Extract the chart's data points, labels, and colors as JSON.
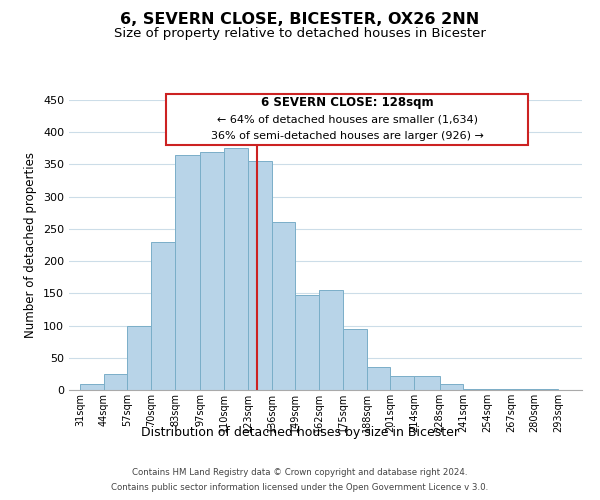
{
  "title": "6, SEVERN CLOSE, BICESTER, OX26 2NN",
  "subtitle": "Size of property relative to detached houses in Bicester",
  "xlabel": "Distribution of detached houses by size in Bicester",
  "ylabel": "Number of detached properties",
  "footer_line1": "Contains HM Land Registry data © Crown copyright and database right 2024.",
  "footer_line2": "Contains public sector information licensed under the Open Government Licence v 3.0.",
  "annotation_title": "6 SEVERN CLOSE: 128sqm",
  "annotation_line1": "← 64% of detached houses are smaller (1,634)",
  "annotation_line2": "36% of semi-detached houses are larger (926) →",
  "bar_left_edges": [
    31,
    44,
    57,
    70,
    83,
    97,
    110,
    123,
    136,
    149,
    162,
    175,
    188,
    201,
    214,
    228,
    241,
    254,
    267,
    280
  ],
  "bar_heights": [
    10,
    25,
    100,
    230,
    365,
    370,
    375,
    355,
    260,
    147,
    155,
    95,
    35,
    22,
    22,
    10,
    1,
    1,
    1,
    1
  ],
  "bar_widths": [
    13,
    13,
    13,
    13,
    14,
    13,
    13,
    13,
    13,
    13,
    13,
    13,
    13,
    13,
    14,
    13,
    13,
    13,
    13,
    13
  ],
  "tick_labels": [
    "31sqm",
    "44sqm",
    "57sqm",
    "70sqm",
    "83sqm",
    "97sqm",
    "110sqm",
    "123sqm",
    "136sqm",
    "149sqm",
    "162sqm",
    "175sqm",
    "188sqm",
    "201sqm",
    "214sqm",
    "228sqm",
    "241sqm",
    "254sqm",
    "267sqm",
    "280sqm",
    "293sqm"
  ],
  "tick_positions": [
    31,
    44,
    57,
    70,
    83,
    97,
    110,
    123,
    136,
    149,
    162,
    175,
    188,
    201,
    214,
    228,
    241,
    254,
    267,
    280,
    293
  ],
  "bar_color": "#b8d4e8",
  "bar_edge_color": "#7aaec8",
  "vline_x": 128,
  "vline_color": "#cc2222",
  "ylim": [
    0,
    450
  ],
  "xlim": [
    25,
    306
  ],
  "background_color": "#ffffff",
  "grid_color": "#ccdde8",
  "title_fontsize": 11.5,
  "subtitle_fontsize": 9.5,
  "annotation_box_edge_color": "#cc2222",
  "annotation_box_face_color": "#ffffff"
}
